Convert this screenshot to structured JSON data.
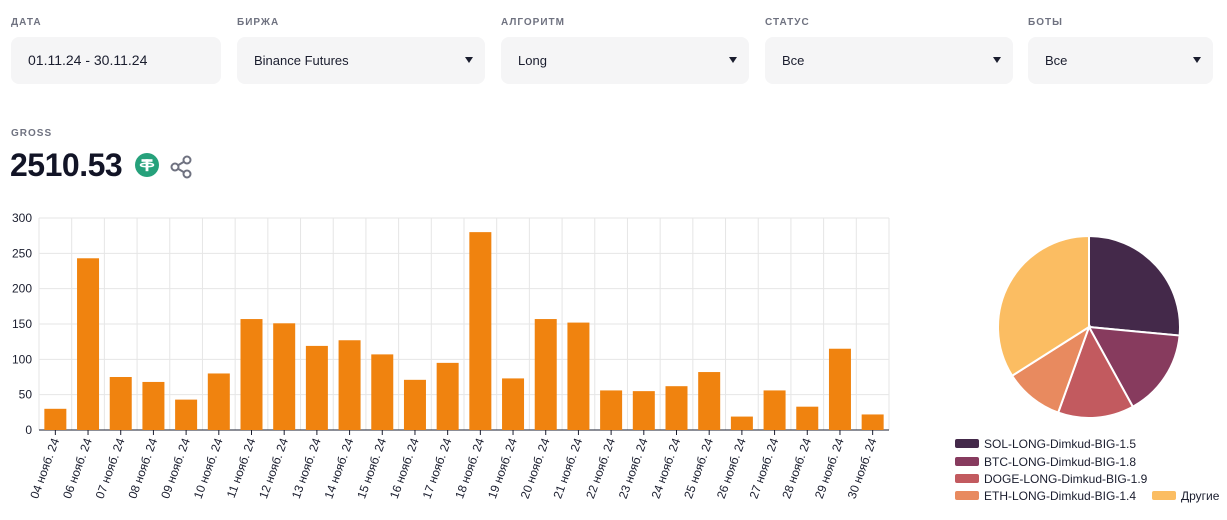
{
  "filters": [
    {
      "label": "ДАТА",
      "value": "01.11.24 - 30.11.24",
      "dropdown": false
    },
    {
      "label": "БИРЖА",
      "value": "Binance Futures",
      "dropdown": true
    },
    {
      "label": "АЛГОРИТМ",
      "value": "Long",
      "dropdown": true
    },
    {
      "label": "СТАТУС",
      "value": "Все",
      "dropdown": true
    },
    {
      "label": "БОТЫ",
      "value": "Все",
      "dropdown": true
    }
  ],
  "gross": {
    "label": "GROSS",
    "value": "2510.53",
    "currency_icon": "tether-icon",
    "share_icon": "share-icon"
  },
  "colors": {
    "bar": "#f0830f",
    "tether": "#26a17b",
    "grid": "#e6e6e6"
  },
  "chart_data": [
    {
      "type": "bar",
      "title": "",
      "xlabel": "",
      "ylabel": "",
      "ylim": [
        0,
        300
      ],
      "yticks": [
        0,
        50,
        100,
        150,
        200,
        250,
        300
      ],
      "grid": true,
      "categories": [
        "04 нояб. 24",
        "06 нояб. 24",
        "07 нояб. 24",
        "08 нояб. 24",
        "09 нояб. 24",
        "10 нояб. 24",
        "11 нояб. 24",
        "12 нояб. 24",
        "13 нояб. 24",
        "14 нояб. 24",
        "15 нояб. 24",
        "16 нояб. 24",
        "17 нояб. 24",
        "18 нояб. 24",
        "19 нояб. 24",
        "20 нояб. 24",
        "21 нояб. 24",
        "22 нояб. 24",
        "23 нояб. 24",
        "24 нояб. 24",
        "25 нояб. 24",
        "26 нояб. 24",
        "27 нояб. 24",
        "28 нояб. 24",
        "29 нояб. 24",
        "30 нояб. 24"
      ],
      "values": [
        30,
        243,
        75,
        68,
        43,
        80,
        157,
        151,
        119,
        127,
        107,
        71,
        95,
        280,
        73,
        157,
        152,
        56,
        55,
        62,
        82,
        19,
        56,
        33,
        115,
        22
      ]
    },
    {
      "type": "pie",
      "legend_position": "bottom",
      "slices": [
        {
          "label": "SOL-LONG-Dimkud-BIG-1.5",
          "value": 26.5,
          "color": "#44294a"
        },
        {
          "label": "BTC-LONG-Dimkud-BIG-1.8",
          "value": 15.5,
          "color": "#873b5e"
        },
        {
          "label": "DOGE-LONG-Dimkud-BIG-1.9",
          "value": 13.5,
          "color": "#c25a5f"
        },
        {
          "label": "ETH-LONG-Dimkud-BIG-1.4",
          "value": 10.5,
          "color": "#e88a5f"
        },
        {
          "label": "Другие",
          "value": 34.0,
          "color": "#fbbd62"
        }
      ]
    }
  ]
}
